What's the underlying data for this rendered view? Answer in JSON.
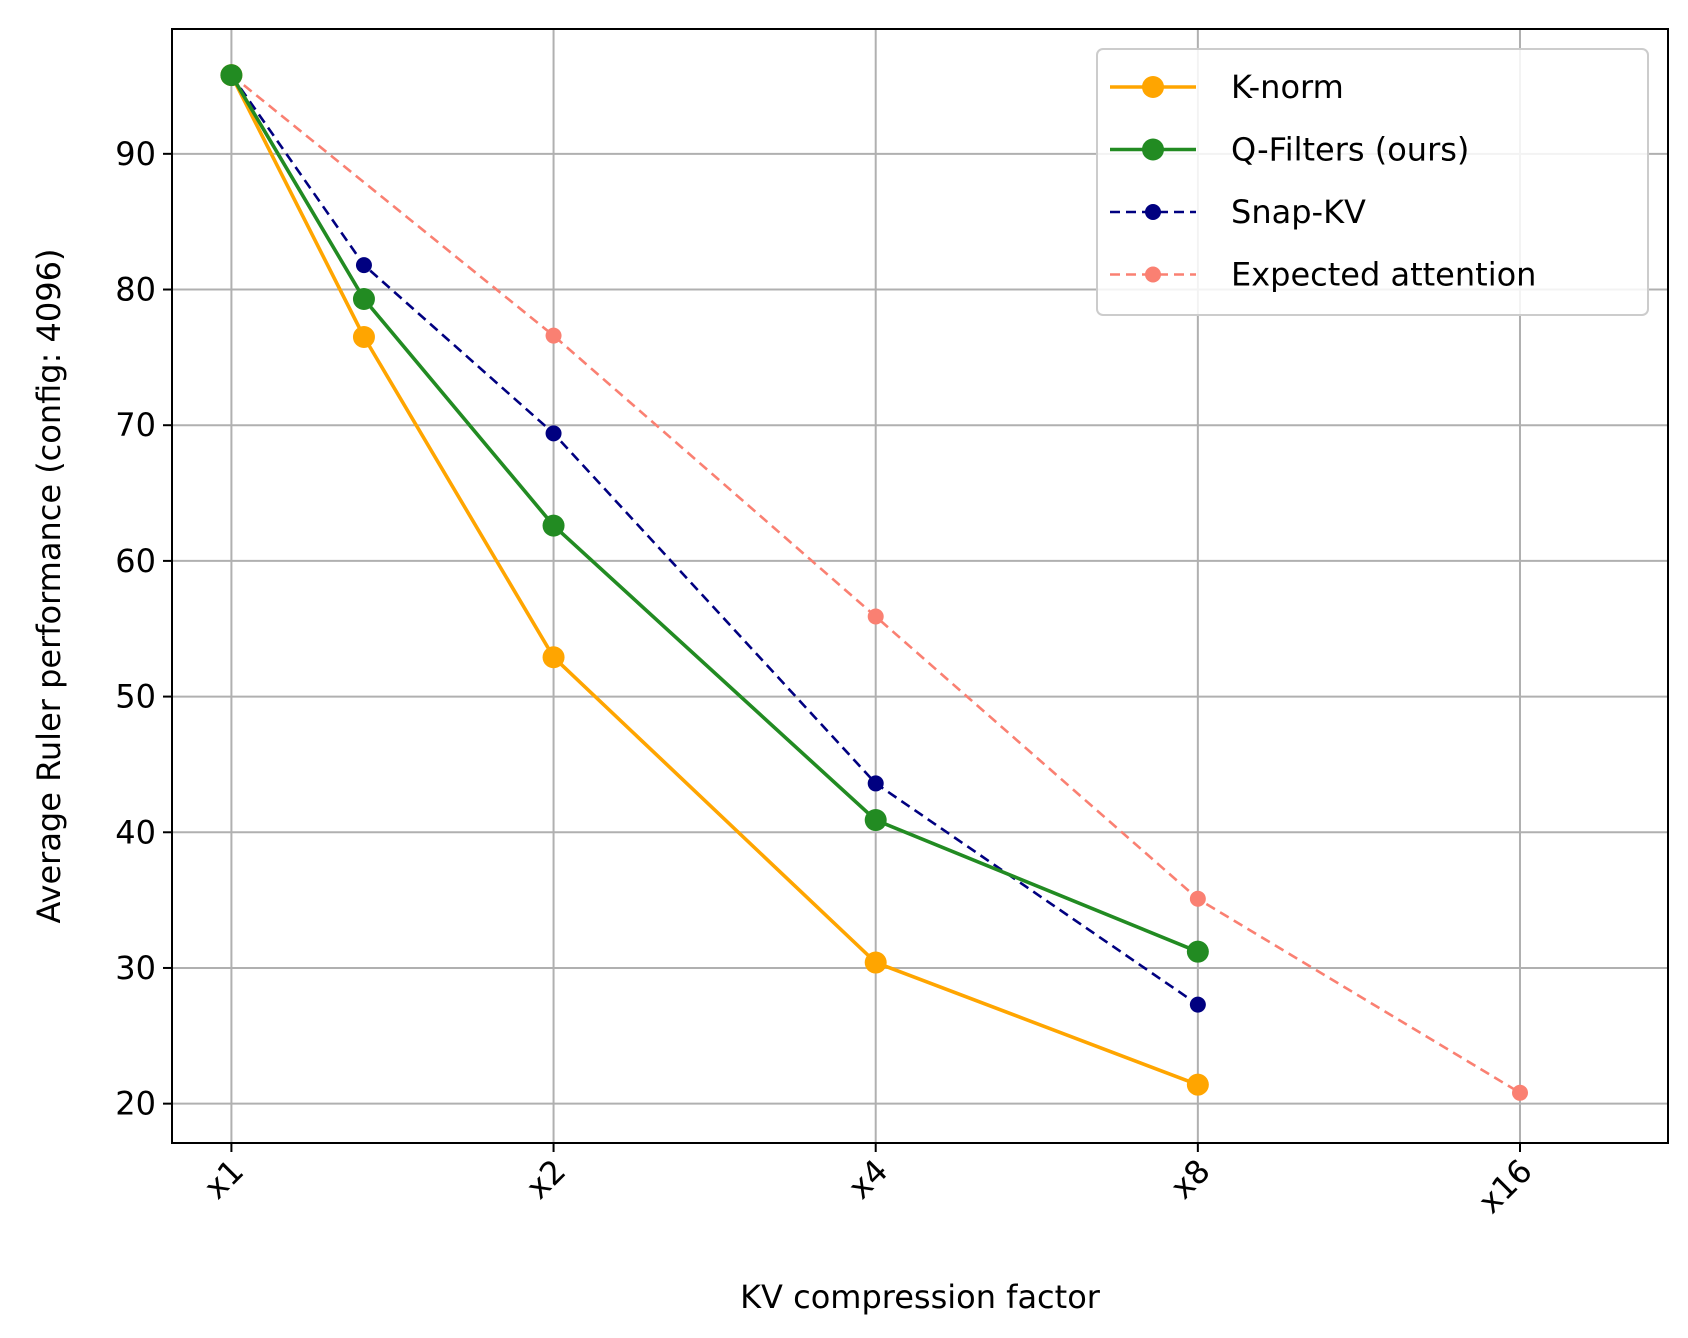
{
  "chart_data": {
    "type": "line",
    "xlabel": "KV compression factor",
    "ylabel": "Average Ruler performance (config: 4096)",
    "xscale": "log2",
    "xlim": [
      0.88,
      22
    ],
    "ylim": [
      17.1,
      99.2
    ],
    "x_ticks": [
      {
        "value": 1,
        "label": "x1"
      },
      {
        "value": 2,
        "label": "x2"
      },
      {
        "value": 4,
        "label": "x4"
      },
      {
        "value": 8,
        "label": "x8"
      },
      {
        "value": 16,
        "label": "x16"
      }
    ],
    "y_ticks": [
      20,
      30,
      40,
      50,
      60,
      70,
      80,
      90
    ],
    "grid": true,
    "legend_position": "top-right",
    "series": [
      {
        "name": "K-norm",
        "color": "#ffa500",
        "style": "solid",
        "marker": "large",
        "points": [
          {
            "x": 1,
            "y": 95.8
          },
          {
            "x": 1.33,
            "y": 76.5
          },
          {
            "x": 2,
            "y": 52.9
          },
          {
            "x": 4,
            "y": 30.4
          },
          {
            "x": 8,
            "y": 21.4
          }
        ]
      },
      {
        "name": "Q-Filters (ours)",
        "color": "#228b22",
        "style": "solid",
        "marker": "large",
        "points": [
          {
            "x": 1,
            "y": 95.8
          },
          {
            "x": 1.33,
            "y": 79.3
          },
          {
            "x": 2,
            "y": 62.6
          },
          {
            "x": 4,
            "y": 40.9
          },
          {
            "x": 8,
            "y": 31.2
          }
        ]
      },
      {
        "name": "Snap-KV",
        "color": "#000080",
        "style": "dashed",
        "marker": "small",
        "points": [
          {
            "x": 1,
            "y": 95.8
          },
          {
            "x": 1.33,
            "y": 81.8
          },
          {
            "x": 2,
            "y": 69.4
          },
          {
            "x": 4,
            "y": 43.6
          },
          {
            "x": 8,
            "y": 27.3
          }
        ]
      },
      {
        "name": "Expected attention",
        "color": "#fa8072",
        "style": "dashed",
        "marker": "small",
        "points": [
          {
            "x": 1,
            "y": 95.8
          },
          {
            "x": 2,
            "y": 76.6
          },
          {
            "x": 4,
            "y": 55.9
          },
          {
            "x": 8,
            "y": 35.1
          },
          {
            "x": 16,
            "y": 20.8
          }
        ]
      }
    ]
  }
}
